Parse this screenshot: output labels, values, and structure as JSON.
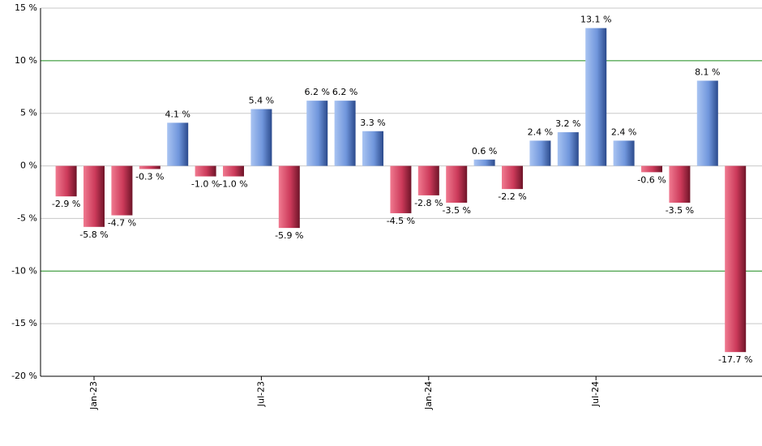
{
  "chart_data": {
    "type": "bar",
    "categories": [
      null,
      "Jan-23",
      null,
      null,
      null,
      null,
      null,
      "Jul-23",
      null,
      null,
      null,
      null,
      null,
      "Jan-24",
      null,
      null,
      null,
      null,
      null,
      "Jul-24",
      null,
      null,
      null,
      null,
      null
    ],
    "values": [
      -2.9,
      -5.8,
      -4.7,
      -0.3,
      4.1,
      -1.0,
      -1.0,
      5.4,
      -5.9,
      6.2,
      6.2,
      3.3,
      -4.5,
      -2.8,
      -3.5,
      0.6,
      -2.2,
      2.4,
      3.2,
      13.1,
      2.4,
      -0.6,
      -3.5,
      8.1,
      -17.7
    ],
    "value_labels": [
      "-2.9 %",
      "-5.8 %",
      "-4.7 %",
      "-0.3 %",
      "4.1 %",
      "-1.0 %",
      "-1.0 %",
      "5.4 %",
      "-5.9 %",
      "6.2 %",
      "6.2 %",
      "3.3 %",
      "-4.5 %",
      "-2.8 %",
      "-3.5 %",
      "0.6 %",
      "-2.2 %",
      "2.4 %",
      "3.2 %",
      "13.1 %",
      "2.4 %",
      "-0.6 %",
      "-3.5 %",
      "8.1 %",
      "-17.7 %"
    ],
    "color_positive": "#6f95dc",
    "color_negative": "#d0405f",
    "ylim": [
      -20,
      15
    ],
    "yticks": [
      {
        "value": -20,
        "label": "-20 %"
      },
      {
        "value": -15,
        "label": "-15 %"
      },
      {
        "value": -10,
        "label": "-10 %"
      },
      {
        "value": -5,
        "label": "-5 %"
      },
      {
        "value": 0,
        "label": "0 %"
      },
      {
        "value": 5,
        "label": "5 %"
      },
      {
        "value": 10,
        "label": "10 %"
      },
      {
        "value": 15,
        "label": "15 %"
      }
    ],
    "grid": true,
    "grid_color": "#c8c8c8",
    "highlight_gridlines": [
      10,
      -10
    ],
    "highlight_color": "#1a8a1a"
  }
}
